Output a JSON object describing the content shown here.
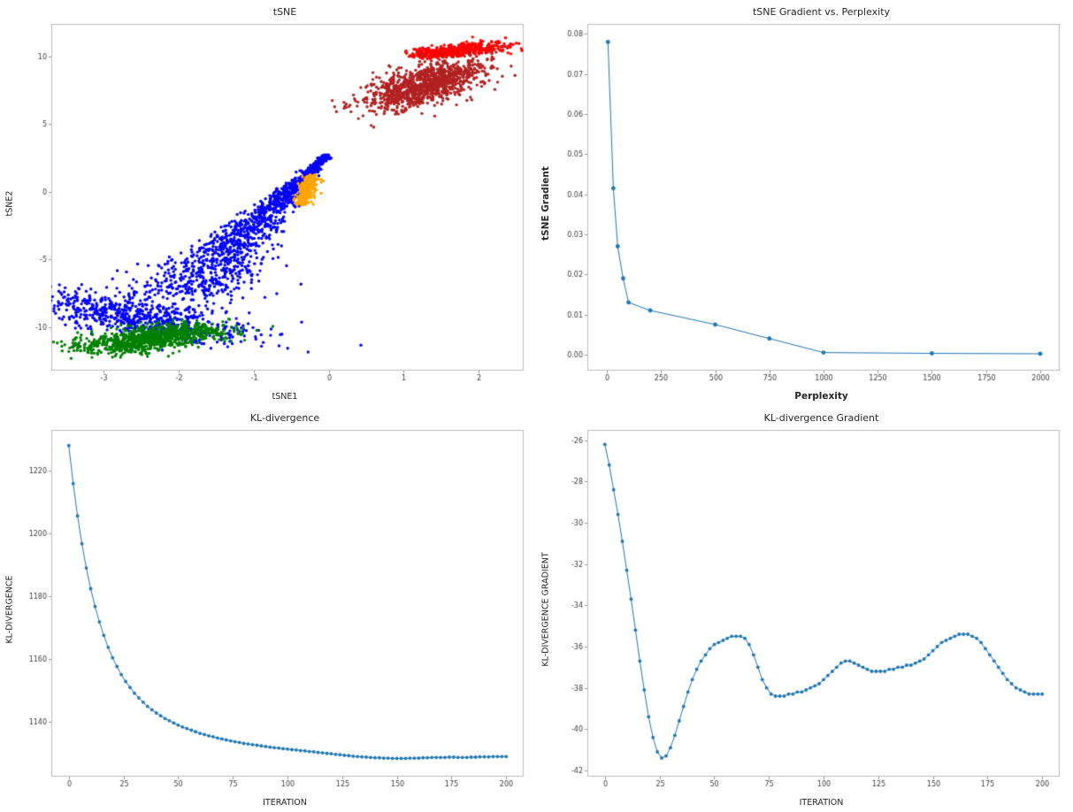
{
  "page": {
    "background": "#ffffff",
    "accent_line_color": "#1f77b4"
  },
  "chart_data": [
    {
      "id": "tsne-scatter",
      "type": "scatter",
      "title": "tSNE",
      "xlabel": "tSNE1",
      "ylabel": "tSNE2",
      "xlim": [
        -3.7,
        2.6
      ],
      "ylim": [
        -13.2,
        12.4
      ],
      "xticks": [
        -3,
        -2,
        -1,
        0,
        1,
        2
      ],
      "xtick_labels": [
        "-3",
        "-2",
        "-1",
        "0",
        "1",
        "2"
      ],
      "yticks": [
        -10,
        -5,
        0,
        5,
        10
      ],
      "ytick_labels": [
        "-10",
        "-5",
        "0",
        "5",
        "10"
      ],
      "spine_color": "#bdbdbd",
      "point_radius": 1.7,
      "clusters": [
        {
          "name": "cluster-red",
          "color": "#ff0000",
          "kind": "streak",
          "from": [
            1.3,
            10.1
          ],
          "to": [
            2.12,
            10.8
          ],
          "jitter": [
            0.16,
            0.24
          ],
          "jitter_pow": 1,
          "n": 520,
          "seed": 11
        },
        {
          "name": "cluster-firebrick",
          "color": "#b22222",
          "kind": "blob",
          "center": [
            1.28,
            7.9
          ],
          "sx": 0.3,
          "sy": 0.92,
          "rot": -18,
          "n": 1150,
          "seed": 22
        },
        {
          "name": "cluster-blue-streak",
          "color": "#0000ff",
          "kind": "streak",
          "from": [
            -0.02,
            2.7
          ],
          "to": [
            -1.95,
            -7.6
          ],
          "jitter": [
            0.04,
            0.45
          ],
          "jitter_pow": 1.5,
          "n": 1300,
          "seed": 33
        },
        {
          "name": "cluster-blue-blob",
          "color": "#0000ff",
          "kind": "blob",
          "center": [
            -2.5,
            -9.3
          ],
          "sx": 0.48,
          "sy": 1.05,
          "rot": 35,
          "n": 720,
          "seed": 44
        },
        {
          "name": "cluster-green",
          "color": "#008000",
          "kind": "streak",
          "from": [
            -2.95,
            -11.5
          ],
          "to": [
            -1.75,
            -10.1
          ],
          "jitter": [
            0.38,
            0.34
          ],
          "jitter_pow": 1,
          "n": 950,
          "seed": 55
        },
        {
          "name": "cluster-orange",
          "color": "#ffa500",
          "kind": "streak",
          "from": [
            -0.36,
            -0.9
          ],
          "to": [
            -0.22,
            1.2
          ],
          "jitter": [
            0.055,
            0.055
          ],
          "jitter_pow": 1,
          "n": 270,
          "seed": 66
        }
      ]
    },
    {
      "id": "tsne-gradient-vs-perplexity",
      "type": "line",
      "title": "tSNE Gradient vs. Perplexity",
      "xlabel": "Perplexity",
      "ylabel": "tSNE Gradient",
      "color": "#1f77b4",
      "marker_size": 2.4,
      "xlim": [
        -90,
        2090
      ],
      "ylim": [
        -0.004,
        0.0825
      ],
      "xticks": [
        0,
        250,
        500,
        750,
        1000,
        1250,
        1500,
        1750,
        2000
      ],
      "xtick_labels": [
        "0",
        "250",
        "500",
        "750",
        "1000",
        "1250",
        "1500",
        "1750",
        "2000"
      ],
      "yticks": [
        0.0,
        0.01,
        0.02,
        0.03,
        0.04,
        0.05,
        0.06,
        0.07,
        0.08
      ],
      "ytick_labels": [
        "0.00",
        "0.01",
        "0.02",
        "0.03",
        "0.04",
        "0.05",
        "0.06",
        "0.07",
        "0.08"
      ],
      "spine_color": "#bdbdbd",
      "points": [
        [
          5,
          0.078
        ],
        [
          30,
          0.0415
        ],
        [
          50,
          0.027
        ],
        [
          75,
          0.019
        ],
        [
          100,
          0.013
        ],
        [
          200,
          0.011
        ],
        [
          500,
          0.0075
        ],
        [
          750,
          0.004
        ],
        [
          1000,
          0.0005
        ],
        [
          1500,
          0.0003
        ],
        [
          2000,
          0.0002
        ]
      ]
    },
    {
      "id": "kl-divergence",
      "type": "line",
      "title": "KL-divergence",
      "xlabel": "ITERATION",
      "ylabel": "KL-DIVERGENCE",
      "color": "#1f77b4",
      "marker_size": 1.9,
      "xlim": [
        -8,
        208
      ],
      "ylim": [
        1122.5,
        1233
      ],
      "xticks": [
        0,
        25,
        50,
        75,
        100,
        125,
        150,
        175,
        200
      ],
      "xtick_labels": [
        "0",
        "25",
        "50",
        "75",
        "100",
        "125",
        "150",
        "175",
        "200"
      ],
      "yticks": [
        1140,
        1160,
        1180,
        1200,
        1220
      ],
      "ytick_labels": [
        "1140",
        "1160",
        "1180",
        "1200",
        "1220"
      ],
      "spine_color": "#bdbdbd",
      "x_start": 0,
      "x_step": 2,
      "values": [
        1228.0,
        1215.9,
        1205.6,
        1196.7,
        1189.0,
        1182.4,
        1176.7,
        1171.8,
        1167.5,
        1163.7,
        1160.4,
        1157.6,
        1155.0,
        1152.8,
        1150.9,
        1149.1,
        1147.6,
        1146.2,
        1144.9,
        1143.8,
        1142.8,
        1141.9,
        1141.0,
        1140.3,
        1139.6,
        1138.9,
        1138.3,
        1137.8,
        1137.3,
        1136.8,
        1136.3,
        1135.9,
        1135.5,
        1135.2,
        1134.8,
        1134.5,
        1134.2,
        1133.9,
        1133.6,
        1133.4,
        1133.1,
        1132.9,
        1132.7,
        1132.5,
        1132.3,
        1132.1,
        1131.9,
        1131.7,
        1131.6,
        1131.4,
        1131.3,
        1131.1,
        1131.0,
        1130.8,
        1130.7,
        1130.5,
        1130.4,
        1130.2,
        1130.1,
        1129.9,
        1129.8,
        1129.6,
        1129.5,
        1129.3,
        1129.2,
        1129.0,
        1128.9,
        1128.8,
        1128.7,
        1128.6,
        1128.5,
        1128.5,
        1128.4,
        1128.4,
        1128.3,
        1128.3,
        1128.3,
        1128.3,
        1128.4,
        1128.4,
        1128.4,
        1128.5,
        1128.5,
        1128.6,
        1128.6,
        1128.6,
        1128.6,
        1128.7,
        1128.7,
        1128.6,
        1128.6,
        1128.6,
        1128.7,
        1128.7,
        1128.8,
        1128.8,
        1128.8,
        1128.9,
        1128.9,
        1128.9,
        1128.9
      ]
    },
    {
      "id": "kl-divergence-gradient",
      "type": "line",
      "title": "KL-divergence Gradient",
      "xlabel": "ITERATION",
      "ylabel": "KL-DIVERGENCE GRADIENT",
      "color": "#1f77b4",
      "marker_size": 1.9,
      "xlim": [
        -8,
        208
      ],
      "ylim": [
        -42.3,
        -25.5
      ],
      "xticks": [
        0,
        25,
        50,
        75,
        100,
        125,
        150,
        175,
        200
      ],
      "xtick_labels": [
        "0",
        "25",
        "50",
        "75",
        "100",
        "125",
        "150",
        "175",
        "200"
      ],
      "yticks": [
        -42,
        -40,
        -38,
        -36,
        -34,
        -32,
        -30,
        -28,
        -26
      ],
      "ytick_labels": [
        "-42",
        "-40",
        "-38",
        "-36",
        "-34",
        "-32",
        "-30",
        "-28",
        "-26"
      ],
      "spine_color": "#bdbdbd",
      "x_start": 0,
      "x_step": 2,
      "values": [
        -26.2,
        -27.2,
        -28.4,
        -29.6,
        -30.9,
        -32.3,
        -33.7,
        -35.2,
        -36.7,
        -38.1,
        -39.4,
        -40.4,
        -41.1,
        -41.4,
        -41.3,
        -40.9,
        -40.3,
        -39.6,
        -38.9,
        -38.2,
        -37.6,
        -37.1,
        -36.7,
        -36.4,
        -36.1,
        -35.9,
        -35.8,
        -35.7,
        -35.6,
        -35.5,
        -35.5,
        -35.5,
        -35.6,
        -35.9,
        -36.4,
        -37.0,
        -37.6,
        -38.0,
        -38.3,
        -38.4,
        -38.4,
        -38.4,
        -38.3,
        -38.3,
        -38.2,
        -38.2,
        -38.1,
        -38.0,
        -37.9,
        -37.8,
        -37.6,
        -37.4,
        -37.2,
        -37.0,
        -36.8,
        -36.7,
        -36.7,
        -36.8,
        -36.9,
        -37.0,
        -37.1,
        -37.2,
        -37.2,
        -37.2,
        -37.2,
        -37.1,
        -37.1,
        -37.0,
        -37.0,
        -36.9,
        -36.9,
        -36.8,
        -36.7,
        -36.6,
        -36.4,
        -36.2,
        -36.0,
        -35.8,
        -35.7,
        -35.6,
        -35.5,
        -35.4,
        -35.4,
        -35.4,
        -35.5,
        -35.6,
        -35.8,
        -36.1,
        -36.4,
        -36.7,
        -37.0,
        -37.3,
        -37.6,
        -37.8,
        -38.0,
        -38.1,
        -38.2,
        -38.3,
        -38.3,
        -38.3,
        -38.3
      ]
    }
  ]
}
